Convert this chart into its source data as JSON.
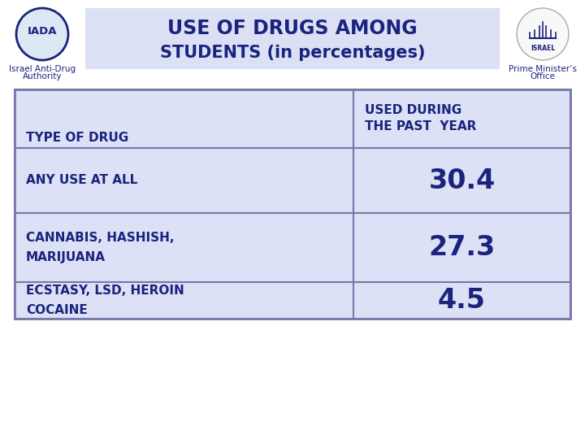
{
  "title_line1": "USE OF DRUGS AMONG",
  "title_line2": "STUDENTS (in percentages)",
  "title_color": "#1a237e",
  "title_bg_color": "#dce0f5",
  "left_org_line1": "Israel Anti-Drug",
  "left_org_line2": "Authority",
  "right_org_line1": "Prime Minister’s",
  "right_org_line2": "Office",
  "bg_color": "#ffffff",
  "table_bg": "#dde1f5",
  "table_border": "#7777aa",
  "header_col1": "TYPE OF DRUG",
  "header_col2_line1": "USED DURING",
  "header_col2_line2": "THE PAST  YEAR",
  "rows": [
    {
      "drug": "ANY USE AT ALL",
      "value": "30.4",
      "multiline": false
    },
    {
      "drug_line1": "CANNABIS, HASHISH,",
      "drug_line2": "MARIJUANA",
      "value": "27.3",
      "multiline": true
    },
    {
      "drug_line1": "ECSTASY, LSD, HEROIN",
      "drug_line2": "COCAINE",
      "value": "4.5",
      "multiline": true
    }
  ],
  "text_color": "#1a237e",
  "value_fontsize": 24,
  "header_fontsize": 11,
  "row_label_fontsize": 11,
  "org_fontsize": 7.5,
  "iada_fontsize": 10,
  "logo_circle_color": "#dde8f5",
  "logo_circle_edge": "#1a237e"
}
